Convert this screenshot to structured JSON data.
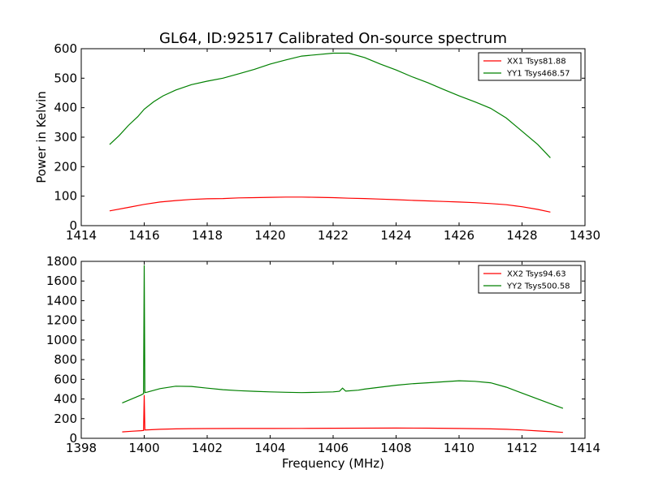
{
  "figure": {
    "title": "GL64, ID:92517 Calibrated On-source spectrum",
    "ylabel": "Power in Kelvin",
    "xlabel": "Frequency (MHz)"
  },
  "chart_data": [
    {
      "type": "line",
      "title": "GL64, ID:92517 Calibrated On-source spectrum",
      "xlabel": "",
      "ylabel": "Power in Kelvin",
      "xlim": [
        1414,
        1430
      ],
      "ylim": [
        0,
        600
      ],
      "xticks": [
        1414,
        1416,
        1418,
        1420,
        1422,
        1424,
        1426,
        1428,
        1430
      ],
      "yticks": [
        0,
        100,
        200,
        300,
        400,
        500,
        600
      ],
      "grid": false,
      "legend_position": "top-right",
      "series": [
        {
          "name": "XX1 Tsys81.88",
          "color": "#ff0000",
          "x": [
            1414.9,
            1415.5,
            1416.0,
            1416.5,
            1417.0,
            1417.5,
            1418.0,
            1418.5,
            1419.0,
            1419.5,
            1420.0,
            1420.5,
            1421.0,
            1421.5,
            1422.0,
            1422.5,
            1423.0,
            1423.5,
            1424.0,
            1424.5,
            1425.0,
            1425.5,
            1426.0,
            1426.5,
            1427.0,
            1427.5,
            1428.0,
            1428.5,
            1428.9
          ],
          "y": [
            50,
            62,
            72,
            80,
            85,
            89,
            91,
            92,
            94,
            95,
            96,
            97,
            97,
            96,
            95,
            93,
            92,
            90,
            88,
            86,
            84,
            82,
            80,
            78,
            75,
            71,
            64,
            55,
            46
          ]
        },
        {
          "name": "YY1 Tsys468.57",
          "color": "#008000",
          "x": [
            1414.9,
            1415.2,
            1415.5,
            1415.8,
            1416.0,
            1416.3,
            1416.6,
            1417.0,
            1417.5,
            1418.0,
            1418.5,
            1419.0,
            1419.5,
            1420.0,
            1420.5,
            1421.0,
            1421.5,
            1422.0,
            1422.5,
            1423.0,
            1423.5,
            1424.0,
            1424.5,
            1425.0,
            1425.5,
            1426.0,
            1426.5,
            1427.0,
            1427.5,
            1428.0,
            1428.5,
            1428.9
          ],
          "y": [
            275,
            305,
            340,
            370,
            395,
            420,
            440,
            460,
            478,
            490,
            500,
            515,
            530,
            548,
            562,
            575,
            580,
            585,
            585,
            570,
            548,
            528,
            505,
            485,
            462,
            440,
            420,
            398,
            365,
            320,
            275,
            230
          ]
        }
      ]
    },
    {
      "type": "line",
      "title": "",
      "xlabel": "Frequency (MHz)",
      "ylabel": "",
      "xlim": [
        1398,
        1414
      ],
      "ylim": [
        0,
        1800
      ],
      "xticks": [
        1398,
        1400,
        1402,
        1404,
        1406,
        1408,
        1410,
        1412,
        1414
      ],
      "yticks": [
        0,
        200,
        400,
        600,
        800,
        1000,
        1200,
        1400,
        1600,
        1800
      ],
      "grid": false,
      "legend_position": "top-right",
      "series": [
        {
          "name": "XX2 Tsys94.63",
          "color": "#ff0000",
          "x": [
            1399.3,
            1399.6,
            1399.9,
            1399.98,
            1400.0,
            1400.02,
            1400.1,
            1400.5,
            1401.0,
            1401.5,
            1402.0,
            1403.0,
            1404.0,
            1405.0,
            1406.0,
            1407.0,
            1408.0,
            1409.0,
            1410.0,
            1411.0,
            1411.5,
            1412.0,
            1412.5,
            1413.0,
            1413.3
          ],
          "y": [
            65,
            72,
            78,
            80,
            440,
            85,
            86,
            92,
            96,
            98,
            99,
            100,
            100,
            101,
            102,
            103,
            104,
            103,
            100,
            96,
            92,
            85,
            75,
            66,
            60
          ]
        },
        {
          "name": "YY2 Tsys500.58",
          "color": "#008000",
          "x": [
            1399.3,
            1399.6,
            1399.9,
            1399.98,
            1400.0,
            1400.02,
            1400.1,
            1400.5,
            1401.0,
            1401.5,
            1402.0,
            1402.5,
            1403.0,
            1403.5,
            1404.0,
            1404.5,
            1405.0,
            1405.5,
            1406.0,
            1406.2,
            1406.3,
            1406.4,
            1406.8,
            1407.0,
            1407.5,
            1408.0,
            1408.5,
            1409.0,
            1409.5,
            1410.0,
            1410.5,
            1411.0,
            1411.5,
            1412.0,
            1412.5,
            1413.0,
            1413.3
          ],
          "y": [
            360,
            400,
            440,
            455,
            1760,
            465,
            470,
            505,
            530,
            528,
            510,
            495,
            485,
            478,
            472,
            468,
            465,
            468,
            472,
            478,
            510,
            480,
            490,
            500,
            520,
            540,
            555,
            565,
            575,
            585,
            580,
            565,
            520,
            460,
            400,
            340,
            305
          ]
        }
      ]
    }
  ]
}
